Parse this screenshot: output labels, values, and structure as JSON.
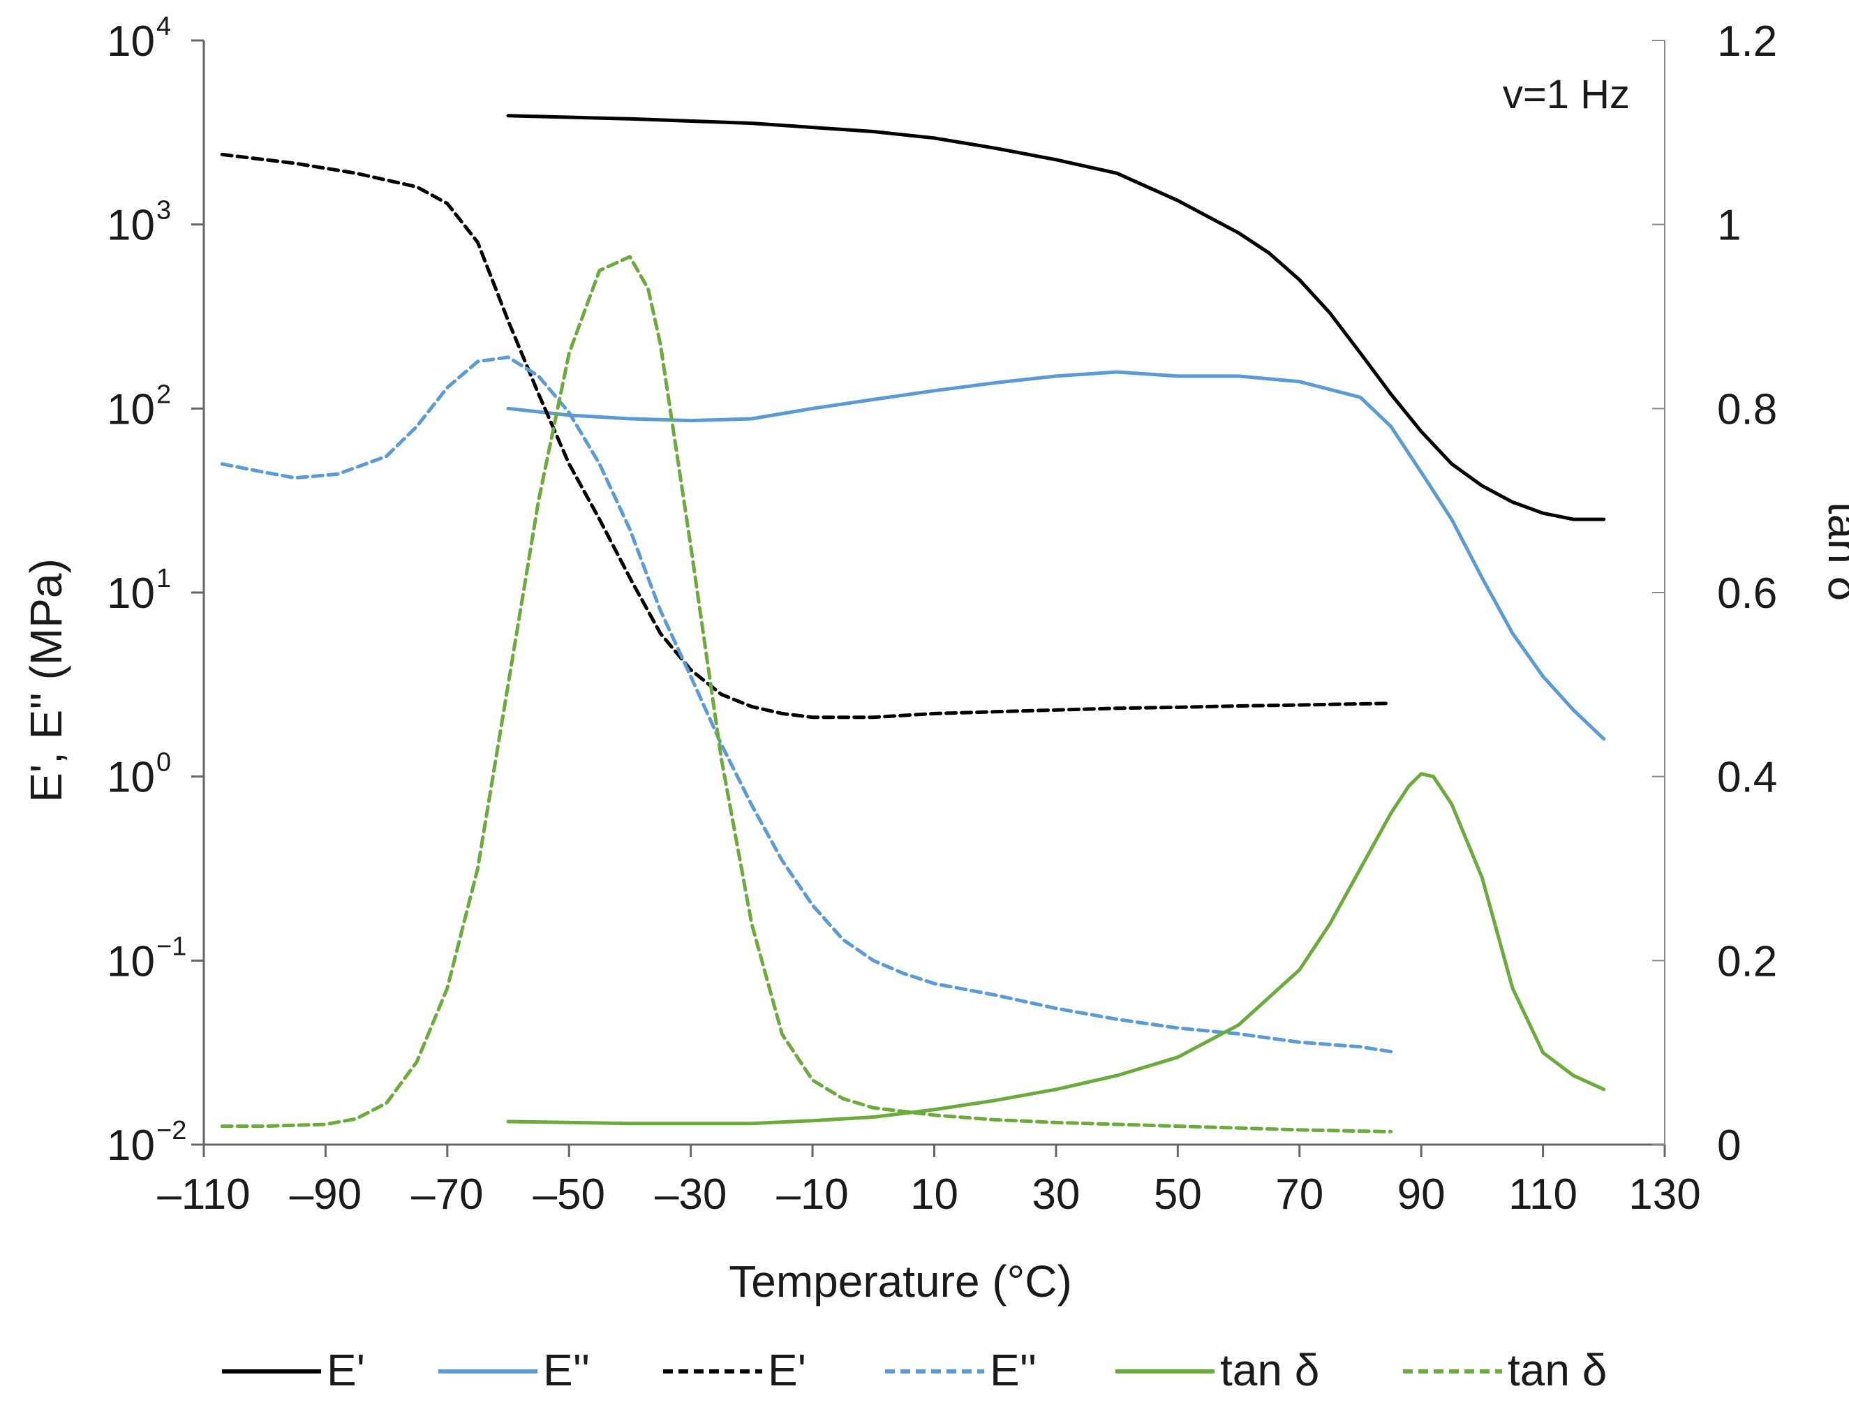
{
  "chart_data": {
    "type": "line",
    "title": "",
    "annotation": "v=1 Hz",
    "xlabel": "Temperature  (°C)",
    "ylabel": "E', E''  (MPa)",
    "y2label": "tan δ",
    "xlim": [
      -110,
      130
    ],
    "xticks": [
      "–110",
      "–90",
      "–70",
      "–50",
      "–30",
      "–10",
      "10",
      "30",
      "50",
      "70",
      "90",
      "110",
      "130"
    ],
    "ylim_log": [
      -2,
      4
    ],
    "yticks": [
      {
        "base": "10",
        "exp": "4"
      },
      {
        "base": "10",
        "exp": "3"
      },
      {
        "base": "10",
        "exp": "2"
      },
      {
        "base": "10",
        "exp": "1"
      },
      {
        "base": "10",
        "exp": "0"
      },
      {
        "base": "10",
        "exp": "−1"
      },
      {
        "base": "10",
        "exp": "−2"
      }
    ],
    "y2lim": [
      0,
      1.2
    ],
    "y2ticks": [
      "1.2",
      "1",
      "0.8",
      "0.6",
      "0.4",
      "0.2",
      "0"
    ],
    "series": [
      {
        "name": "E'",
        "axis": "left",
        "style": "solid",
        "color": "#000000",
        "points": [
          [
            -60,
            3900
          ],
          [
            -40,
            3750
          ],
          [
            -20,
            3550
          ],
          [
            0,
            3200
          ],
          [
            10,
            2950
          ],
          [
            20,
            2600
          ],
          [
            30,
            2250
          ],
          [
            40,
            1900
          ],
          [
            50,
            1350
          ],
          [
            60,
            900
          ],
          [
            65,
            700
          ],
          [
            70,
            500
          ],
          [
            75,
            330
          ],
          [
            80,
            200
          ],
          [
            85,
            120
          ],
          [
            90,
            75
          ],
          [
            95,
            50
          ],
          [
            100,
            38
          ],
          [
            105,
            31
          ],
          [
            110,
            27
          ],
          [
            115,
            25
          ],
          [
            120,
            25
          ]
        ]
      },
      {
        "name": "E''",
        "axis": "left",
        "style": "solid",
        "color": "#5b9bd5",
        "points": [
          [
            -60,
            100
          ],
          [
            -50,
            92
          ],
          [
            -40,
            88
          ],
          [
            -30,
            86
          ],
          [
            -20,
            88
          ],
          [
            -10,
            100
          ],
          [
            0,
            112
          ],
          [
            10,
            125
          ],
          [
            20,
            138
          ],
          [
            30,
            150
          ],
          [
            40,
            158
          ],
          [
            50,
            150
          ],
          [
            60,
            150
          ],
          [
            70,
            140
          ],
          [
            80,
            115
          ],
          [
            85,
            80
          ],
          [
            90,
            45
          ],
          [
            95,
            25
          ],
          [
            100,
            12
          ],
          [
            105,
            6
          ],
          [
            110,
            3.5
          ],
          [
            115,
            2.3
          ],
          [
            120,
            1.6
          ]
        ]
      },
      {
        "name": "E'",
        "axis": "left",
        "style": "dashed",
        "color": "#000000",
        "points": [
          [
            -107,
            2400
          ],
          [
            -95,
            2150
          ],
          [
            -85,
            1900
          ],
          [
            -75,
            1600
          ],
          [
            -70,
            1300
          ],
          [
            -65,
            800
          ],
          [
            -60,
            300
          ],
          [
            -55,
            120
          ],
          [
            -50,
            50
          ],
          [
            -45,
            25
          ],
          [
            -40,
            12
          ],
          [
            -35,
            6
          ],
          [
            -30,
            3.8
          ],
          [
            -25,
            2.8
          ],
          [
            -20,
            2.4
          ],
          [
            -15,
            2.2
          ],
          [
            -10,
            2.1
          ],
          [
            -5,
            2.1
          ],
          [
            0,
            2.1
          ],
          [
            10,
            2.2
          ],
          [
            20,
            2.25
          ],
          [
            30,
            2.3
          ],
          [
            40,
            2.35
          ],
          [
            50,
            2.38
          ],
          [
            60,
            2.42
          ],
          [
            70,
            2.45
          ],
          [
            85,
            2.5
          ]
        ]
      },
      {
        "name": "E''",
        "axis": "left",
        "style": "dashed",
        "color": "#5b9bd5",
        "points": [
          [
            -107,
            50
          ],
          [
            -100,
            45
          ],
          [
            -95,
            42
          ],
          [
            -88,
            44
          ],
          [
            -80,
            55
          ],
          [
            -75,
            80
          ],
          [
            -70,
            130
          ],
          [
            -65,
            180
          ],
          [
            -60,
            190
          ],
          [
            -55,
            150
          ],
          [
            -50,
            95
          ],
          [
            -45,
            50
          ],
          [
            -40,
            22
          ],
          [
            -35,
            8
          ],
          [
            -30,
            3.5
          ],
          [
            -25,
            1.5
          ],
          [
            -20,
            0.7
          ],
          [
            -15,
            0.35
          ],
          [
            -10,
            0.2
          ],
          [
            -5,
            0.13
          ],
          [
            0,
            0.1
          ],
          [
            5,
            0.085
          ],
          [
            10,
            0.075
          ],
          [
            20,
            0.065
          ],
          [
            30,
            0.055
          ],
          [
            40,
            0.048
          ],
          [
            50,
            0.043
          ],
          [
            60,
            0.04
          ],
          [
            70,
            0.036
          ],
          [
            80,
            0.034
          ],
          [
            85,
            0.032
          ]
        ]
      },
      {
        "name": "tan δ",
        "axis": "right",
        "style": "solid",
        "color": "#6aab3b",
        "points": [
          [
            -60,
            0.025
          ],
          [
            -40,
            0.023
          ],
          [
            -20,
            0.023
          ],
          [
            -10,
            0.026
          ],
          [
            0,
            0.03
          ],
          [
            10,
            0.038
          ],
          [
            20,
            0.048
          ],
          [
            30,
            0.06
          ],
          [
            40,
            0.075
          ],
          [
            50,
            0.095
          ],
          [
            60,
            0.13
          ],
          [
            70,
            0.19
          ],
          [
            75,
            0.24
          ],
          [
            80,
            0.3
          ],
          [
            85,
            0.36
          ],
          [
            88,
            0.39
          ],
          [
            90,
            0.403
          ],
          [
            92,
            0.4
          ],
          [
            95,
            0.37
          ],
          [
            100,
            0.29
          ],
          [
            105,
            0.17
          ],
          [
            110,
            0.1
          ],
          [
            115,
            0.075
          ],
          [
            120,
            0.06
          ]
        ]
      },
      {
        "name": "tan δ",
        "axis": "right",
        "style": "dashed",
        "color": "#6aab3b",
        "points": [
          [
            -107,
            0.02
          ],
          [
            -100,
            0.02
          ],
          [
            -95,
            0.021
          ],
          [
            -90,
            0.022
          ],
          [
            -85,
            0.028
          ],
          [
            -80,
            0.045
          ],
          [
            -75,
            0.09
          ],
          [
            -70,
            0.17
          ],
          [
            -65,
            0.3
          ],
          [
            -60,
            0.5
          ],
          [
            -55,
            0.7
          ],
          [
            -50,
            0.86
          ],
          [
            -45,
            0.95
          ],
          [
            -40,
            0.965
          ],
          [
            -37,
            0.93
          ],
          [
            -35,
            0.87
          ],
          [
            -30,
            0.65
          ],
          [
            -25,
            0.42
          ],
          [
            -20,
            0.24
          ],
          [
            -15,
            0.12
          ],
          [
            -10,
            0.07
          ],
          [
            -5,
            0.05
          ],
          [
            0,
            0.04
          ],
          [
            10,
            0.032
          ],
          [
            20,
            0.027
          ],
          [
            30,
            0.024
          ],
          [
            50,
            0.02
          ],
          [
            70,
            0.016
          ],
          [
            85,
            0.014
          ]
        ]
      }
    ],
    "legend": [
      {
        "label": "E'",
        "style": "solid",
        "color": "#000000"
      },
      {
        "label": "E''",
        "style": "solid",
        "color": "#5b9bd5"
      },
      {
        "label": "E'",
        "style": "dashed",
        "color": "#000000"
      },
      {
        "label": "E''",
        "style": "dashed",
        "color": "#5b9bd5"
      },
      {
        "label": "tan δ",
        "style": "solid",
        "color": "#6aab3b"
      },
      {
        "label": "tan δ",
        "style": "dashed",
        "color": "#6aab3b"
      }
    ],
    "legend_position": "bottom",
    "grid": false
  }
}
